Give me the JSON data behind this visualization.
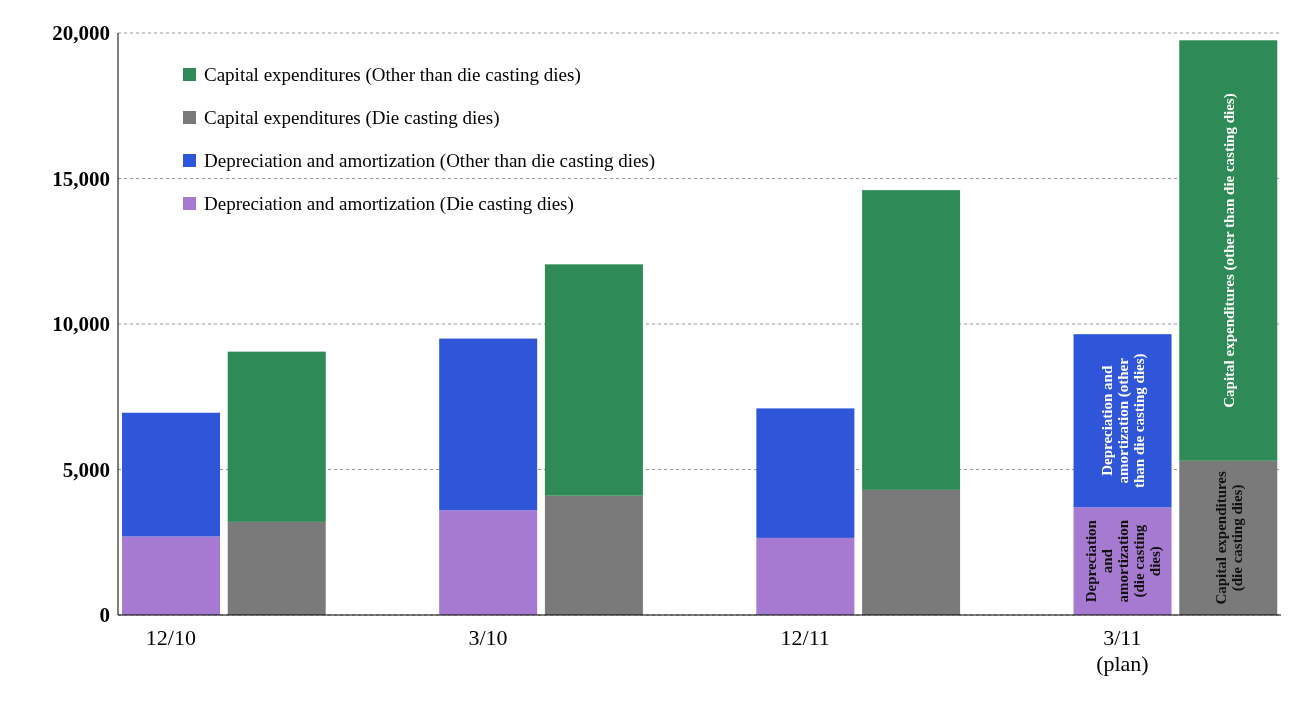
{
  "chart_data": {
    "type": "bar",
    "stacked": true,
    "categories": [
      "12/10",
      null,
      null,
      "3/10",
      null,
      null,
      "12/11",
      null,
      null,
      "3/11\n(plan)",
      null
    ],
    "series": [
      {
        "name": "Depreciation and amortization (Die casting dies)",
        "color": "#a57ad0",
        "values": [
          2700,
          null,
          null,
          3600,
          null,
          null,
          2650,
          null,
          null,
          3700,
          null
        ]
      },
      {
        "name": "Depreciation and amortization (Other than die casting dies)",
        "color": "#2f56d8",
        "values": [
          4250,
          null,
          null,
          5900,
          null,
          null,
          4450,
          null,
          null,
          5950,
          null
        ]
      },
      {
        "name": "Capital expenditures (Die casting dies)",
        "color": "#7a7a7a",
        "values": [
          null,
          3200,
          null,
          null,
          4100,
          null,
          null,
          4300,
          null,
          null,
          5300
        ]
      },
      {
        "name": "Capital expenditures (Other than die casting dies)",
        "color": "#2e8a57",
        "values": [
          null,
          5850,
          null,
          null,
          7950,
          null,
          null,
          10300,
          null,
          null,
          14450
        ]
      }
    ],
    "ylim": [
      0,
      20000
    ],
    "yticks": [
      0,
      {
        "value": 5000,
        "label": "5,000"
      },
      {
        "value": 10000,
        "label": "10,000"
      },
      {
        "value": 15000,
        "label": "15,000"
      },
      {
        "value": 20000,
        "label": "20,000"
      }
    ],
    "grid": "y",
    "legend": "top left",
    "annotations": [
      "Depreciation and amortization (die casting dies)",
      "Depreciation and amortization (other than die casting dies)",
      "Capital expenditures (die casting dies)",
      "Capital expenditures (other than die casting dies)"
    ]
  }
}
